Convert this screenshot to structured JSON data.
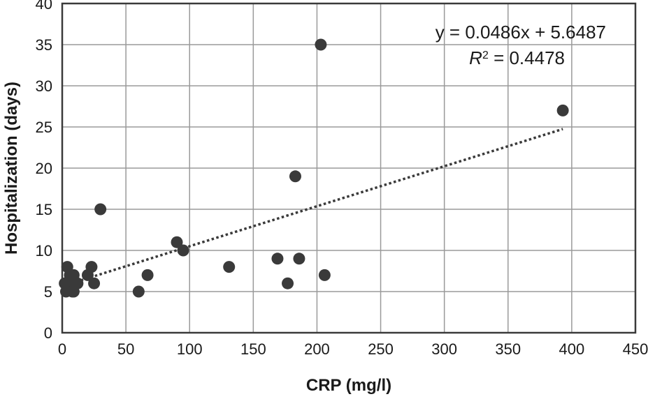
{
  "chart_data": {
    "type": "scatter",
    "xlabel": "CRP (mg/l)",
    "ylabel": "Hospitalization (days)",
    "xlim": [
      0,
      450
    ],
    "ylim": [
      0,
      40
    ],
    "x_ticks": [
      0,
      50,
      100,
      150,
      200,
      250,
      300,
      350,
      400,
      450
    ],
    "y_ticks": [
      0,
      5,
      10,
      15,
      20,
      25,
      30,
      35,
      40
    ],
    "grid": true,
    "point_color": "#3a3a3a",
    "points": [
      {
        "x": 2,
        "y": 6
      },
      {
        "x": 3,
        "y": 5
      },
      {
        "x": 4,
        "y": 8
      },
      {
        "x": 5,
        "y": 6
      },
      {
        "x": 6,
        "y": 7
      },
      {
        "x": 7,
        "y": 6
      },
      {
        "x": 8,
        "y": 5
      },
      {
        "x": 9,
        "y": 7
      },
      {
        "x": 10,
        "y": 6
      },
      {
        "x": 9,
        "y": 5
      },
      {
        "x": 12,
        "y": 6
      },
      {
        "x": 20,
        "y": 7
      },
      {
        "x": 23,
        "y": 8
      },
      {
        "x": 25,
        "y": 6
      },
      {
        "x": 30,
        "y": 15
      },
      {
        "x": 60,
        "y": 5
      },
      {
        "x": 67,
        "y": 7
      },
      {
        "x": 90,
        "y": 11
      },
      {
        "x": 95,
        "y": 10
      },
      {
        "x": 131,
        "y": 8
      },
      {
        "x": 169,
        "y": 9
      },
      {
        "x": 177,
        "y": 6
      },
      {
        "x": 183,
        "y": 19
      },
      {
        "x": 186,
        "y": 9
      },
      {
        "x": 203,
        "y": 35
      },
      {
        "x": 206,
        "y": 7
      },
      {
        "x": 393,
        "y": 27
      }
    ],
    "trendline": {
      "type": "linear",
      "slope": 0.0486,
      "intercept": 5.6487,
      "x_range": [
        0,
        393
      ],
      "equation_text": "y = 0.0486x + 5.6487",
      "r2_label": "R",
      "r2_sup": "2",
      "r2_value_text": " = 0.4478"
    }
  }
}
